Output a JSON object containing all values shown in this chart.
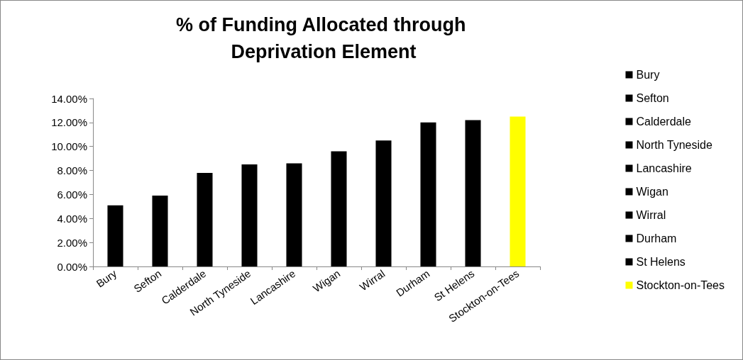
{
  "chart_data": {
    "type": "bar",
    "title": "% of Funding Allocated through Deprivation Element",
    "categories": [
      "Bury",
      "Sefton",
      "Calderdale",
      "North Tyneside",
      "Lancashire",
      "Wigan",
      "Wirral",
      "Durham",
      "St Helens",
      "Stockton-on-Tees"
    ],
    "series": [
      {
        "name": "Bury",
        "color": "#000000",
        "values": [
          5.1,
          null,
          null,
          null,
          null,
          null,
          null,
          null,
          null,
          null
        ]
      },
      {
        "name": "Sefton",
        "color": "#000000",
        "values": [
          null,
          5.9,
          null,
          null,
          null,
          null,
          null,
          null,
          null,
          null
        ]
      },
      {
        "name": "Calderdale",
        "color": "#000000",
        "values": [
          null,
          null,
          7.8,
          null,
          null,
          null,
          null,
          null,
          null,
          null
        ]
      },
      {
        "name": "North Tyneside",
        "color": "#000000",
        "values": [
          null,
          null,
          null,
          8.5,
          null,
          null,
          null,
          null,
          null,
          null
        ]
      },
      {
        "name": "Lancashire",
        "color": "#000000",
        "values": [
          null,
          null,
          null,
          null,
          8.6,
          null,
          null,
          null,
          null,
          null
        ]
      },
      {
        "name": "Wigan",
        "color": "#000000",
        "values": [
          null,
          null,
          null,
          null,
          null,
          9.6,
          null,
          null,
          null,
          null
        ]
      },
      {
        "name": "Wirral",
        "color": "#000000",
        "values": [
          null,
          null,
          null,
          null,
          null,
          null,
          10.5,
          null,
          null,
          null
        ]
      },
      {
        "name": "Durham",
        "color": "#000000",
        "values": [
          null,
          null,
          null,
          null,
          null,
          null,
          null,
          12.0,
          null,
          null
        ]
      },
      {
        "name": "St Helens",
        "color": "#000000",
        "values": [
          null,
          null,
          null,
          null,
          null,
          null,
          null,
          null,
          12.2,
          null
        ]
      },
      {
        "name": "Stockton-on-Tees",
        "color": "#ffff00",
        "values": [
          null,
          null,
          null,
          null,
          null,
          null,
          null,
          null,
          null,
          12.5
        ]
      }
    ],
    "ylim": [
      0,
      14
    ],
    "yticks": [
      {
        "value": 0,
        "label": "0.00%"
      },
      {
        "value": 2,
        "label": "2.00%"
      },
      {
        "value": 4,
        "label": "4.00%"
      },
      {
        "value": 6,
        "label": "6.00%"
      },
      {
        "value": 8,
        "label": "8.00%"
      },
      {
        "value": 10,
        "label": "10.00%"
      },
      {
        "value": 12,
        "label": "12.00%"
      },
      {
        "value": 14,
        "label": "14.00%"
      }
    ],
    "grid": false,
    "legend": "right"
  }
}
